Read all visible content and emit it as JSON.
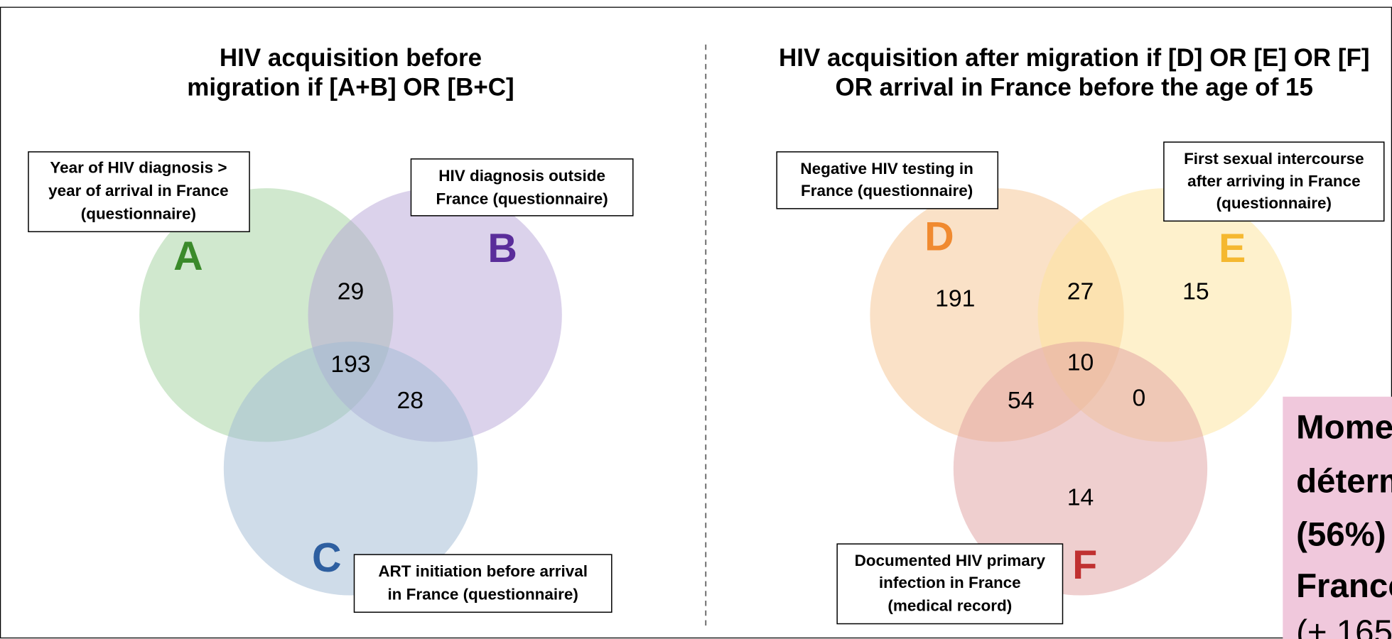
{
  "left": {
    "title": [
      "HIV acquisition before",
      "migration if [A+B] OR [B+C]"
    ],
    "boxes": [
      [
        "Year of HIV diagnosis >",
        "year of arrival in France",
        "(questionnaire)"
      ],
      [
        "HIV diagnosis outside",
        "France (questionnaire)"
      ],
      [
        "ART initiation before arrival",
        "in France (questionnaire)"
      ]
    ],
    "letters": [
      "A",
      "B",
      "C"
    ],
    "counts": {
      "ab": "29",
      "abc": "193",
      "bc": "28"
    }
  },
  "right": {
    "title": [
      "HIV acquisition after migration if [D] OR [E] OR [F]",
      "OR arrival in France before the age of 15"
    ],
    "boxes": [
      [
        "Negative HIV testing in",
        "France (questionnaire)"
      ],
      [
        "First sexual intercourse",
        "after arriving in France",
        "(questionnaire)"
      ],
      [
        "Documented HIV primary",
        "infection in France",
        "(medical record)"
      ]
    ],
    "letters": [
      "D",
      "E",
      "F"
    ],
    "counts": {
      "d": "191",
      "de": "27",
      "e": "15",
      "def": "10",
      "df": "54",
      "ef": "0",
      "f": "14"
    }
  },
  "note": [
    "Mome",
    "déterm",
    "(56%)",
    "France",
    "(+ 165"
  ]
}
